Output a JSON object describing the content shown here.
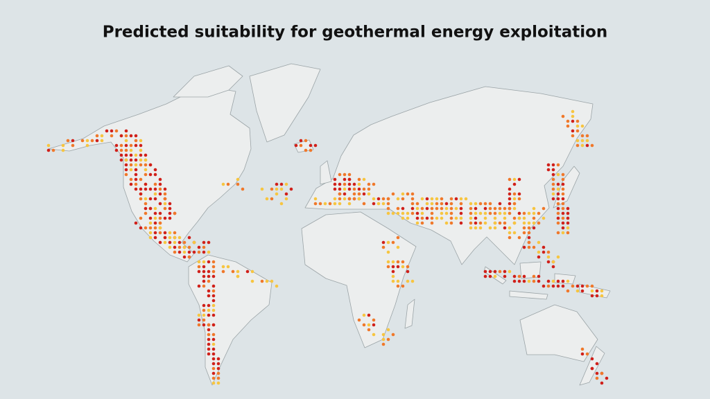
{
  "title": "Predicted suitability for geothermal energy exploitation"
}
